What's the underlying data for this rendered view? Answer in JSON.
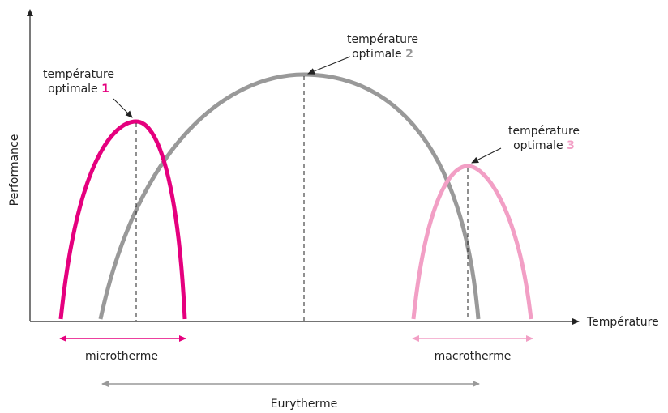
{
  "axes": {
    "y_label": "Performance",
    "x_label": "Température"
  },
  "curves": [
    {
      "line1": "température",
      "line2": "optimale",
      "number": "1"
    },
    {
      "line1": "température",
      "line2": "optimale",
      "number": "2"
    },
    {
      "line1": "température",
      "line2": "optimale",
      "number": "3"
    }
  ],
  "ranges": [
    {
      "label": "microtherme"
    },
    {
      "label": "macrotherme"
    },
    {
      "label": "Eurytherme"
    }
  ]
}
